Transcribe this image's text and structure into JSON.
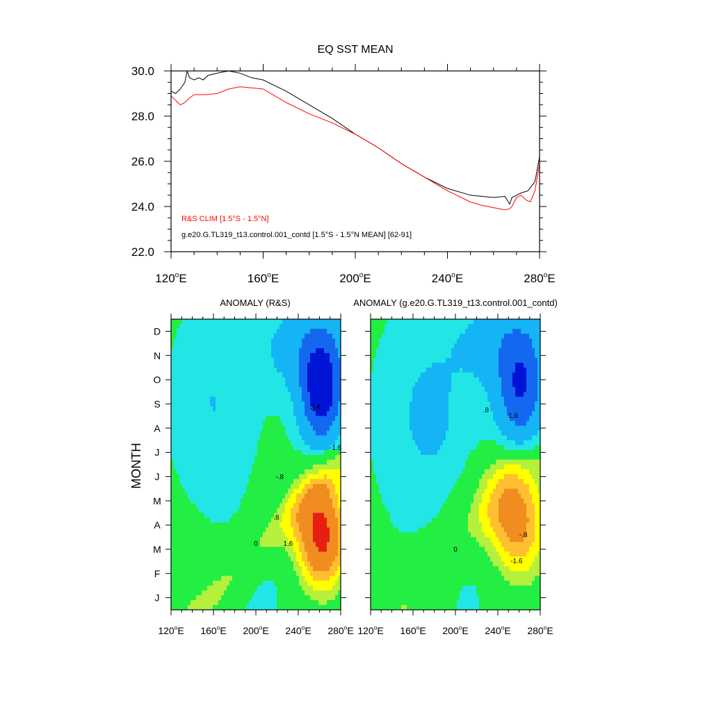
{
  "chart_data": [
    {
      "type": "line",
      "title": "EQ SST MEAN",
      "xlim": [
        120,
        280
      ],
      "ylim": [
        22,
        30
      ],
      "x_ticks": [
        120,
        160,
        200,
        240,
        280
      ],
      "x_tick_labels": [
        "120°E",
        "160°E",
        "200°E",
        "240°E",
        "280°E"
      ],
      "y_ticks": [
        22,
        24,
        26,
        28,
        30
      ],
      "y_tick_labels": [
        "22.0",
        "24.0",
        "26.0",
        "28.0",
        "30.0"
      ],
      "series": [
        {
          "name": "g.e20.G.TL319_t13.control.001_contd [1.5°S - 1.5°N MEAN] [62-91]",
          "color": "#000000",
          "x": [
            120,
            122,
            124,
            126,
            127,
            128,
            130,
            132,
            134,
            136,
            140,
            145,
            150,
            155,
            160,
            170,
            180,
            190,
            200,
            210,
            220,
            230,
            240,
            250,
            255,
            260,
            265,
            267,
            268,
            270,
            272,
            275,
            278,
            280
          ],
          "y": [
            29.1,
            29.0,
            29.2,
            29.5,
            30.0,
            29.7,
            29.6,
            29.7,
            29.6,
            29.8,
            29.9,
            30.0,
            29.9,
            29.7,
            29.6,
            29.1,
            28.5,
            27.9,
            27.2,
            26.6,
            25.9,
            25.3,
            24.8,
            24.5,
            24.45,
            24.4,
            24.45,
            24.1,
            24.4,
            24.5,
            24.6,
            24.7,
            25.1,
            26.2
          ]
        },
        {
          "name": "R&S CLIM [1.5°S - 1.5°N]",
          "color": "#ff0000",
          "x": [
            120,
            122,
            124,
            126,
            128,
            130,
            135,
            140,
            145,
            150,
            155,
            160,
            170,
            180,
            190,
            200,
            210,
            220,
            230,
            240,
            250,
            255,
            260,
            265,
            267,
            268,
            270,
            272,
            274,
            276,
            278,
            280
          ],
          "y": [
            28.9,
            28.7,
            28.5,
            28.6,
            28.8,
            28.95,
            28.95,
            29.0,
            29.2,
            29.3,
            29.25,
            29.2,
            28.6,
            28.1,
            27.7,
            27.2,
            26.6,
            25.9,
            25.3,
            24.7,
            24.2,
            24.05,
            23.95,
            23.85,
            23.9,
            24.0,
            24.4,
            24.5,
            24.3,
            24.2,
            24.7,
            25.9
          ]
        }
      ]
    },
    {
      "type": "heatmap",
      "title": "ANOMALY (R&S)",
      "ylabel": "MONTH",
      "xlim": [
        120,
        280
      ],
      "x_ticks": [
        120,
        160,
        200,
        240,
        280
      ],
      "x_tick_labels": [
        "120°E",
        "160°E",
        "200°E",
        "240°E",
        "280°E"
      ],
      "y_tick_labels": [
        "J",
        "F",
        "M",
        "A",
        "M",
        "J",
        "J",
        "A",
        "S",
        "O",
        "N",
        "D"
      ],
      "contour_labels": [
        "0",
        ".8",
        "1.6",
        "2.4",
        "-.8",
        "-1.6"
      ],
      "features": [
        {
          "sign": "positive",
          "lon": 262,
          "month": 3.0,
          "peak": 3.0
        },
        {
          "sign": "negative",
          "lon": 263,
          "month": 9.0,
          "peak": -2.4
        }
      ]
    },
    {
      "type": "heatmap",
      "title": "ANOMALY (g.e20.G.TL319_t13.control.001_contd)",
      "xlim": [
        120,
        280
      ],
      "x_ticks": [
        120,
        160,
        200,
        240,
        280
      ],
      "x_tick_labels": [
        "120°E",
        "160°E",
        "200°E",
        "240°E",
        "280°E"
      ],
      "contour_labels": [
        "0",
        ".8",
        "1.6",
        "-.8",
        "-1.6"
      ],
      "features": [
        {
          "sign": "positive",
          "lon": 258,
          "month": 3.5,
          "peak": 2.1
        },
        {
          "sign": "negative",
          "lon": 262,
          "month": 9.0,
          "peak": -2.0
        }
      ]
    }
  ],
  "colors": {
    "neg3": "#0014d6",
    "neg2": "#1468f0",
    "neg1": "#14b4f5",
    "neg0": "#22e6e6",
    "near0": "#00f0d0",
    "pos0": "#22ee44",
    "pos1": "#b4f03c",
    "pos2": "#ffff00",
    "pos3": "#ffc030",
    "pos4": "#f08c20",
    "pos5": "#e81e10"
  }
}
